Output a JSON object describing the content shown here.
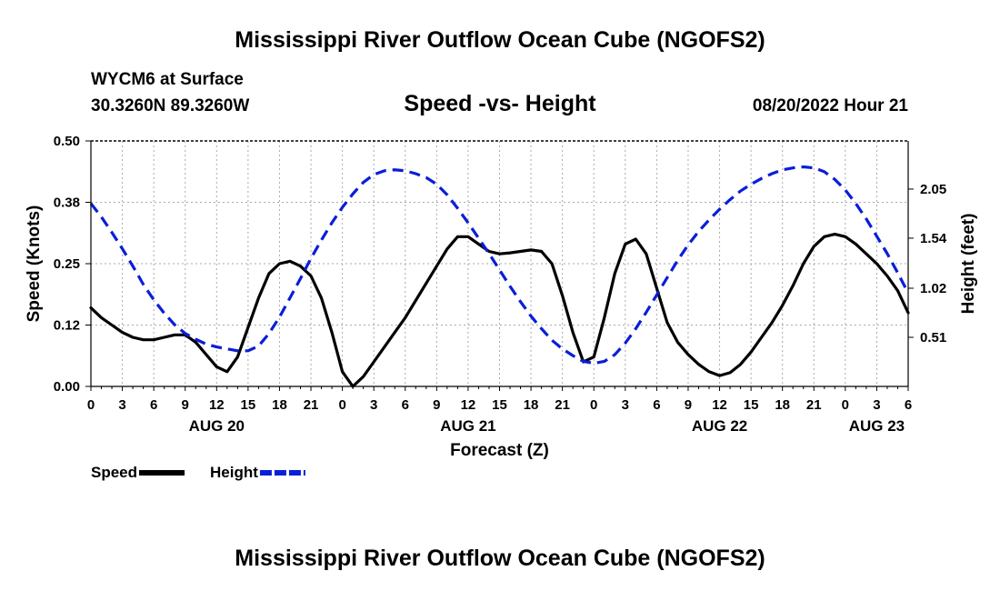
{
  "chart_data": {
    "type": "line",
    "title": "Mississippi River Outflow Ocean Cube (NGOFS2)",
    "footer_title": "Mississippi River Outflow Ocean Cube (NGOFS2)",
    "station": "WYCM6 at Surface",
    "location": "30.3260N  89.3260W",
    "subtitle": "Speed -vs- Height",
    "date_label": "08/20/2022 Hour 21",
    "xlabel": "Forecast (Z)",
    "ylabel_left": "Speed (Knots)",
    "ylabel_right": "Height (feet)",
    "ylim_left": [
      0,
      0.5
    ],
    "ylim_right": [
      0.0,
      2.55
    ],
    "x_range_hours": [
      0,
      78
    ],
    "x_tick_labels": [
      "0",
      "3",
      "6",
      "9",
      "12",
      "15",
      "18",
      "21",
      "0",
      "3",
      "6",
      "9",
      "12",
      "15",
      "18",
      "21",
      "0",
      "3",
      "6",
      "9",
      "12",
      "15",
      "18",
      "21",
      "0",
      "3",
      "6"
    ],
    "day_labels": [
      {
        "label": "AUG 20",
        "hour": 12
      },
      {
        "label": "AUG 21",
        "hour": 36
      },
      {
        "label": "AUG 22",
        "hour": 60
      },
      {
        "label": "AUG 23",
        "hour": 75
      }
    ],
    "y_left_ticks": [
      {
        "value": 0.0,
        "label": "0.00"
      },
      {
        "value": 0.125,
        "label": "0.12"
      },
      {
        "value": 0.25,
        "label": "0.25"
      },
      {
        "value": 0.375,
        "label": "0.38"
      },
      {
        "value": 0.5,
        "label": "0.50"
      }
    ],
    "y_right_ticks": [
      {
        "value": 0.51,
        "label": "0.51"
      },
      {
        "value": 1.02,
        "label": "1.02"
      },
      {
        "value": 1.54,
        "label": "1.54"
      },
      {
        "value": 2.05,
        "label": "2.05"
      }
    ],
    "series": [
      {
        "name": "Speed",
        "axis": "left",
        "color": "#000000",
        "dash": "none",
        "points": [
          [
            0,
            0.16
          ],
          [
            1,
            0.14
          ],
          [
            2,
            0.125
          ],
          [
            3,
            0.11
          ],
          [
            4,
            0.1
          ],
          [
            5,
            0.095
          ],
          [
            6,
            0.095
          ],
          [
            7,
            0.1
          ],
          [
            8,
            0.105
          ],
          [
            9,
            0.105
          ],
          [
            10,
            0.09
          ],
          [
            11,
            0.065
          ],
          [
            12,
            0.04
          ],
          [
            13,
            0.03
          ],
          [
            14,
            0.06
          ],
          [
            15,
            0.12
          ],
          [
            16,
            0.18
          ],
          [
            17,
            0.23
          ],
          [
            18,
            0.25
          ],
          [
            19,
            0.255
          ],
          [
            20,
            0.245
          ],
          [
            21,
            0.225
          ],
          [
            22,
            0.18
          ],
          [
            23,
            0.11
          ],
          [
            24,
            0.03
          ],
          [
            25,
            0.0
          ],
          [
            26,
            0.02
          ],
          [
            27,
            0.05
          ],
          [
            28,
            0.08
          ],
          [
            29,
            0.11
          ],
          [
            30,
            0.14
          ],
          [
            31,
            0.175
          ],
          [
            32,
            0.21
          ],
          [
            33,
            0.245
          ],
          [
            34,
            0.28
          ],
          [
            35,
            0.305
          ],
          [
            36,
            0.305
          ],
          [
            37,
            0.29
          ],
          [
            38,
            0.275
          ],
          [
            39,
            0.27
          ],
          [
            40,
            0.272
          ],
          [
            41,
            0.275
          ],
          [
            42,
            0.278
          ],
          [
            43,
            0.275
          ],
          [
            44,
            0.25
          ],
          [
            45,
            0.185
          ],
          [
            46,
            0.11
          ],
          [
            47,
            0.05
          ],
          [
            48,
            0.06
          ],
          [
            49,
            0.14
          ],
          [
            50,
            0.23
          ],
          [
            51,
            0.29
          ],
          [
            52,
            0.3
          ],
          [
            53,
            0.27
          ],
          [
            54,
            0.2
          ],
          [
            55,
            0.13
          ],
          [
            56,
            0.09
          ],
          [
            57,
            0.065
          ],
          [
            58,
            0.045
          ],
          [
            59,
            0.03
          ],
          [
            60,
            0.022
          ],
          [
            61,
            0.028
          ],
          [
            62,
            0.045
          ],
          [
            63,
            0.07
          ],
          [
            64,
            0.1
          ],
          [
            65,
            0.13
          ],
          [
            66,
            0.165
          ],
          [
            67,
            0.205
          ],
          [
            68,
            0.25
          ],
          [
            69,
            0.285
          ],
          [
            70,
            0.305
          ],
          [
            71,
            0.31
          ],
          [
            72,
            0.305
          ],
          [
            73,
            0.29
          ],
          [
            74,
            0.27
          ],
          [
            75,
            0.25
          ],
          [
            76,
            0.225
          ],
          [
            77,
            0.195
          ],
          [
            78,
            0.15
          ]
        ]
      },
      {
        "name": "Height",
        "axis": "right",
        "color": "#0a1ed8",
        "dash": "12,7",
        "points": [
          [
            0,
            1.9
          ],
          [
            1,
            1.76
          ],
          [
            2,
            1.6
          ],
          [
            3,
            1.43
          ],
          [
            4,
            1.25
          ],
          [
            5,
            1.06
          ],
          [
            6,
            0.9
          ],
          [
            7,
            0.76
          ],
          [
            8,
            0.64
          ],
          [
            9,
            0.55
          ],
          [
            10,
            0.49
          ],
          [
            11,
            0.44
          ],
          [
            12,
            0.41
          ],
          [
            13,
            0.39
          ],
          [
            14,
            0.37
          ],
          [
            15,
            0.37
          ],
          [
            16,
            0.42
          ],
          [
            17,
            0.55
          ],
          [
            18,
            0.72
          ],
          [
            19,
            0.92
          ],
          [
            20,
            1.12
          ],
          [
            21,
            1.33
          ],
          [
            22,
            1.52
          ],
          [
            23,
            1.7
          ],
          [
            24,
            1.86
          ],
          [
            25,
            2.0
          ],
          [
            26,
            2.12
          ],
          [
            27,
            2.2
          ],
          [
            28,
            2.24
          ],
          [
            29,
            2.25
          ],
          [
            30,
            2.24
          ],
          [
            31,
            2.21
          ],
          [
            32,
            2.17
          ],
          [
            33,
            2.1
          ],
          [
            34,
            1.99
          ],
          [
            35,
            1.85
          ],
          [
            36,
            1.7
          ],
          [
            37,
            1.54
          ],
          [
            38,
            1.38
          ],
          [
            39,
            1.21
          ],
          [
            40,
            1.04
          ],
          [
            41,
            0.88
          ],
          [
            42,
            0.73
          ],
          [
            43,
            0.6
          ],
          [
            44,
            0.48
          ],
          [
            45,
            0.39
          ],
          [
            46,
            0.32
          ],
          [
            47,
            0.26
          ],
          [
            48,
            0.24
          ],
          [
            49,
            0.26
          ],
          [
            50,
            0.33
          ],
          [
            51,
            0.45
          ],
          [
            52,
            0.6
          ],
          [
            53,
            0.77
          ],
          [
            54,
            0.95
          ],
          [
            55,
            1.13
          ],
          [
            56,
            1.31
          ],
          [
            57,
            1.47
          ],
          [
            58,
            1.61
          ],
          [
            59,
            1.73
          ],
          [
            60,
            1.84
          ],
          [
            61,
            1.94
          ],
          [
            62,
            2.03
          ],
          [
            63,
            2.1
          ],
          [
            64,
            2.16
          ],
          [
            65,
            2.21
          ],
          [
            66,
            2.25
          ],
          [
            67,
            2.27
          ],
          [
            68,
            2.28
          ],
          [
            69,
            2.27
          ],
          [
            70,
            2.23
          ],
          [
            71,
            2.15
          ],
          [
            72,
            2.04
          ],
          [
            73,
            1.9
          ],
          [
            74,
            1.74
          ],
          [
            75,
            1.56
          ],
          [
            76,
            1.38
          ],
          [
            77,
            1.18
          ],
          [
            78,
            0.97
          ]
        ]
      }
    ],
    "legend": [
      {
        "label": "Speed",
        "color": "#000000",
        "dash": "none"
      },
      {
        "label": "Height",
        "color": "#0a1ed8",
        "dash": "12,7"
      }
    ]
  }
}
